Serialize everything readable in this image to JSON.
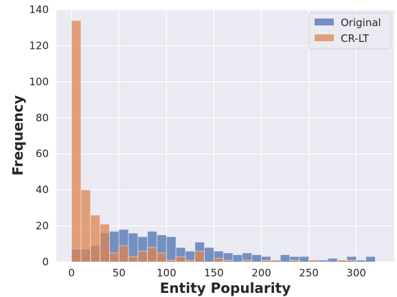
{
  "chart_data": {
    "type": "bar",
    "subtype": "histogram",
    "title": "",
    "xlabel": "Entity Popularity",
    "ylabel": "Frequency",
    "xlim": [
      -16,
      340
    ],
    "ylim": [
      0,
      140
    ],
    "x_ticks": [
      0,
      50,
      100,
      150,
      200,
      250,
      300
    ],
    "y_ticks": [
      0,
      20,
      40,
      60,
      80,
      100,
      120,
      140
    ],
    "grid": true,
    "legend_position": "top-right",
    "bin_width": 10,
    "series": [
      {
        "name": "Original",
        "color": "#4c72b0",
        "bin_starts": [
          0,
          10,
          20,
          30,
          40,
          50,
          60,
          70,
          80,
          90,
          100,
          110,
          120,
          130,
          140,
          150,
          160,
          170,
          180,
          190,
          200,
          210,
          220,
          230,
          240,
          250,
          260,
          270,
          280,
          290,
          300,
          310,
          320
        ],
        "values": [
          7,
          7,
          9,
          16,
          17,
          18,
          16,
          14,
          17,
          15,
          14,
          8,
          6,
          11,
          8,
          6,
          5,
          4,
          5,
          4,
          3,
          1,
          4,
          3,
          3,
          1,
          1,
          2,
          1,
          3,
          1,
          3,
          0
        ]
      },
      {
        "name": "CR-LT",
        "color": "#dd8452",
        "bin_starts": [
          0,
          10,
          20,
          30,
          40,
          50,
          60,
          70,
          80,
          90,
          100,
          110,
          120,
          130,
          140,
          150,
          160,
          170,
          180,
          190,
          200,
          210,
          220,
          230,
          240,
          250,
          260,
          270,
          280,
          290,
          300,
          310,
          320
        ],
        "values": [
          134,
          40,
          26,
          21,
          5,
          9,
          3,
          6,
          8,
          5,
          1,
          3,
          1,
          6,
          0,
          2,
          1,
          0,
          1,
          0,
          1,
          1,
          0,
          1,
          0,
          1,
          0,
          0,
          1,
          1,
          0,
          0,
          0
        ]
      }
    ]
  }
}
